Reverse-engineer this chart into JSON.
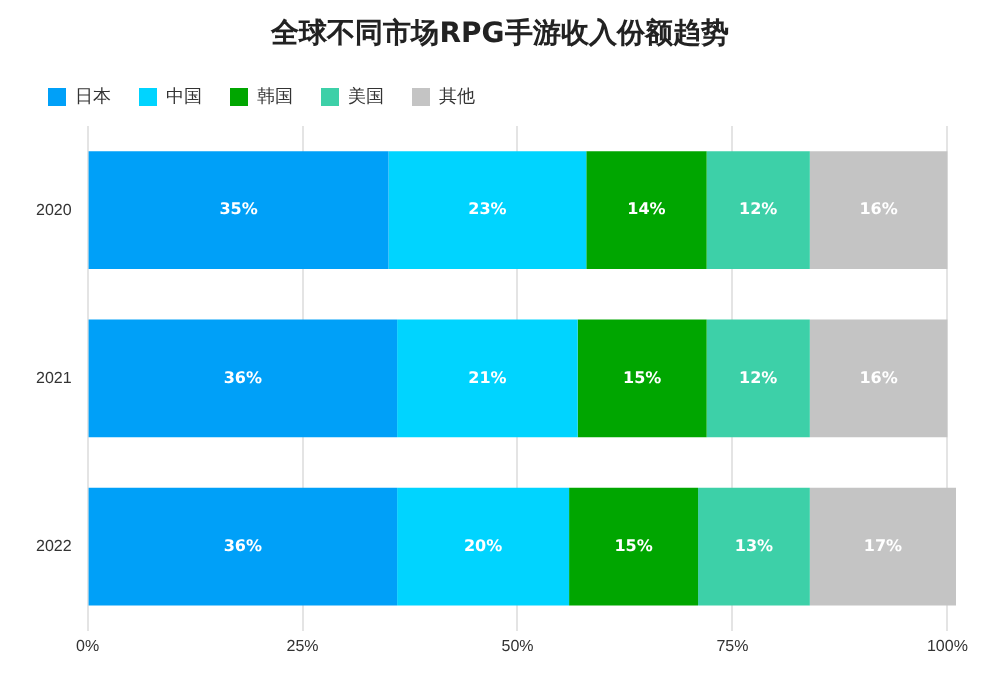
{
  "chart_data": {
    "type": "bar",
    "title": "全球不同市场RPG手游收入份额趋势",
    "orientation": "horizontal",
    "stacked": true,
    "categories": [
      "2020",
      "2021",
      "2022"
    ],
    "series": [
      {
        "name": "日本",
        "color": "#00a0f8",
        "values": [
          35,
          36,
          36
        ],
        "value_labels": [
          "35%",
          "36%",
          "36%"
        ]
      },
      {
        "name": "中国",
        "color": "#00d4ff",
        "values": [
          23,
          21,
          20
        ],
        "value_labels": [
          "23%",
          "21%",
          "20%"
        ]
      },
      {
        "name": "韩国",
        "color": "#00a600",
        "values": [
          14,
          15,
          15
        ],
        "value_labels": [
          "14%",
          "15%",
          "15%"
        ]
      },
      {
        "name": "美国",
        "color": "#3dd0a8",
        "values": [
          12,
          12,
          13
        ],
        "value_labels": [
          "12%",
          "12%",
          "13%"
        ]
      },
      {
        "name": "其他",
        "color": "#c4c4c4",
        "values": [
          16,
          16,
          17
        ],
        "value_labels": [
          "16%",
          "16%",
          "17%"
        ]
      }
    ],
    "xlim": [
      0,
      101
    ],
    "xticks": [
      {
        "value": 0,
        "label": "0%"
      },
      {
        "value": 25,
        "label": "25%"
      },
      {
        "value": 50,
        "label": "50%"
      },
      {
        "value": 75,
        "label": "75%"
      },
      {
        "value": 100,
        "label": "100%"
      }
    ],
    "grid": "x",
    "legend": "top left"
  }
}
